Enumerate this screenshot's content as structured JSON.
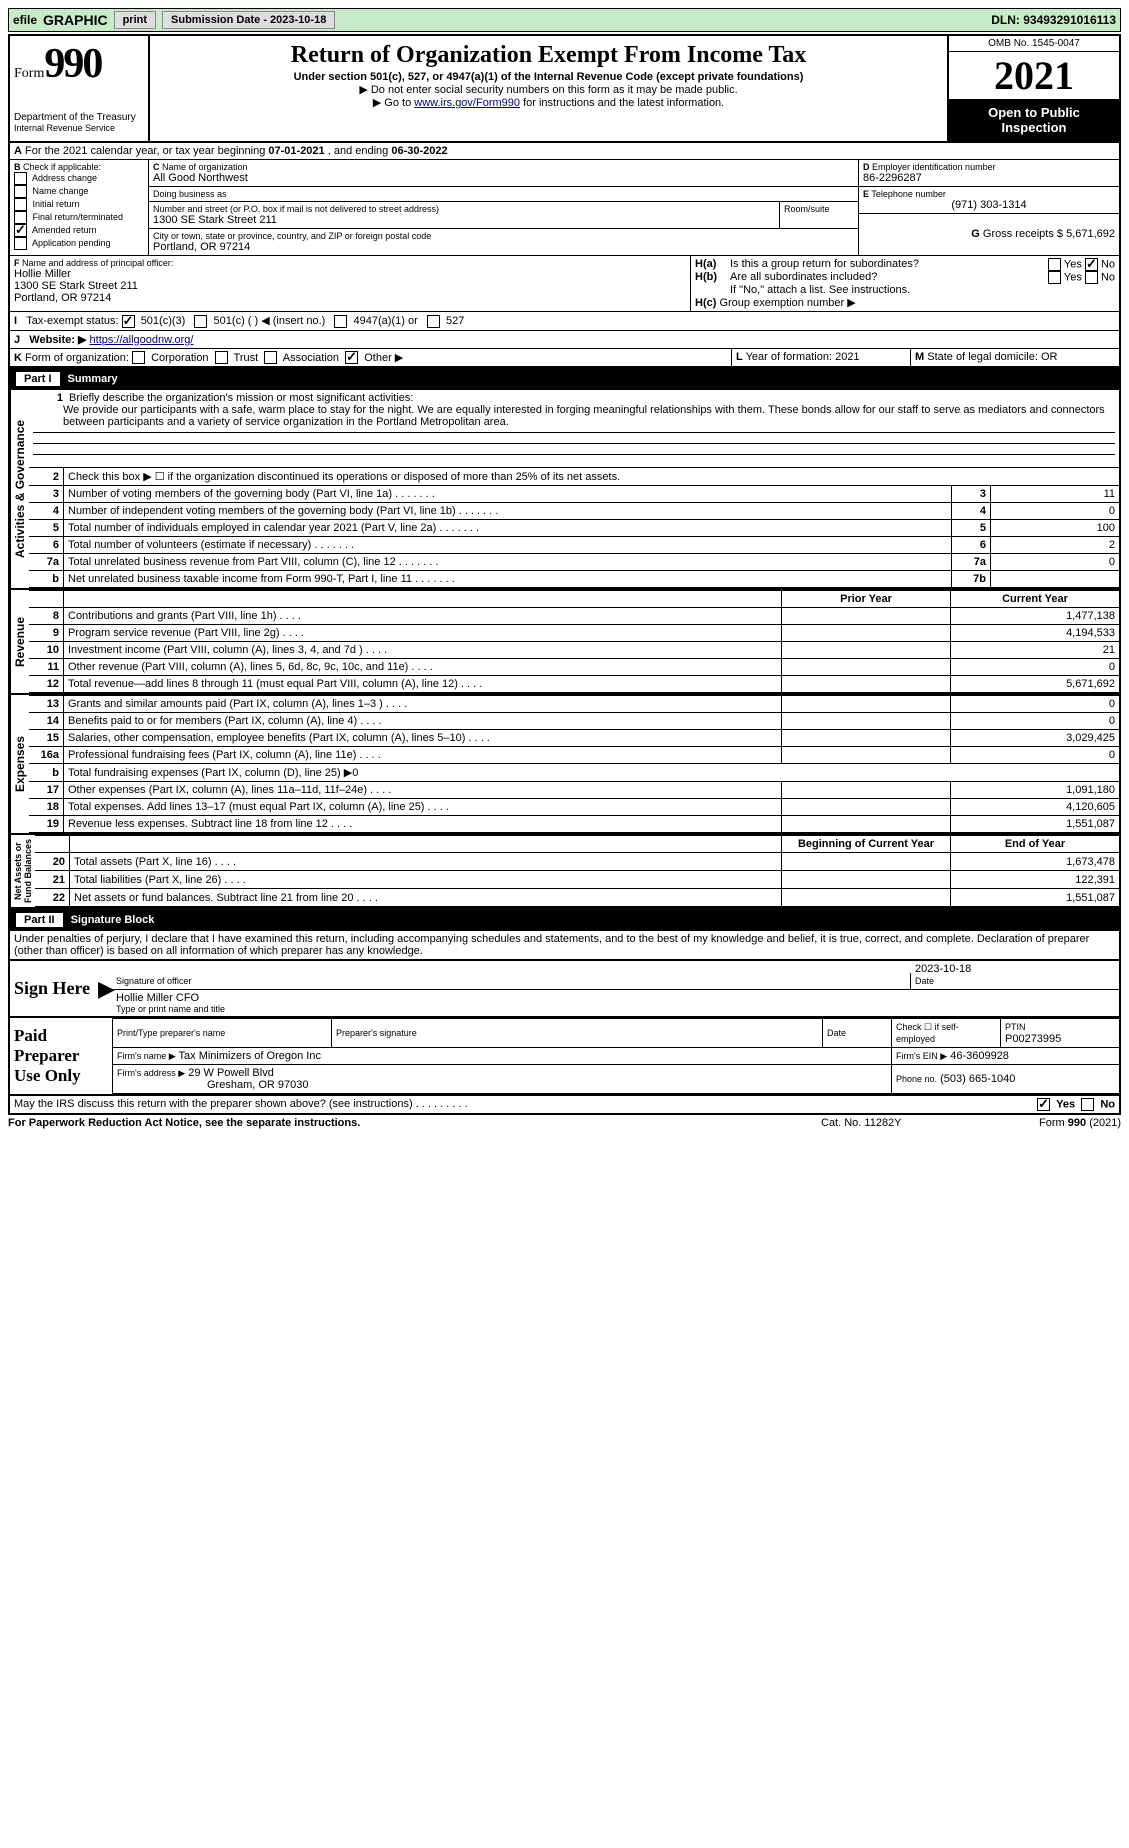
{
  "topbar": {
    "efile": "efile",
    "graphic": "GRAPHIC",
    "print": "print",
    "sub": "Submission Date - 2023-10-18",
    "dln": "DLN: 93493291016113"
  },
  "header": {
    "form": "Form",
    "num": "990",
    "title": "Return of Organization Exempt From Income Tax",
    "sub": "Under section 501(c), 527, or 4947(a)(1) of the Internal Revenue Code (except private foundations)",
    "note1": "▶ Do not enter social security numbers on this form as it may be made public.",
    "note2": "▶ Go to ",
    "link": "www.irs.gov/Form990",
    "note3": " for instructions and the latest information.",
    "dept": "Department of the Treasury",
    "irs": "Internal Revenue Service",
    "omb": "OMB No. 1545-0047",
    "year": "2021",
    "otp": "Open to Public Inspection"
  },
  "A": {
    "text": "For the 2021 calendar year, or tax year beginning ",
    "begin": "07-01-2021",
    "mid": " , and ending ",
    "end": "06-30-2022"
  },
  "B": {
    "hdr": "Check if applicable:",
    "items": [
      "Address change",
      "Name change",
      "Initial return",
      "Final return/terminated",
      "Amended return",
      "Application pending"
    ],
    "checked": [
      false,
      false,
      false,
      false,
      true,
      false
    ]
  },
  "C": {
    "name_lbl": "Name of organization",
    "name": "All Good Northwest",
    "dba_lbl": "Doing business as",
    "dba": "",
    "street_lbl": "Number and street (or P.O. box if mail is not delivered to street address)",
    "room_lbl": "Room/suite",
    "street": "1300 SE Stark Street 211",
    "city_lbl": "City or town, state or province, country, and ZIP or foreign postal code",
    "city": "Portland, OR  97214"
  },
  "D": {
    "lbl": "Employer identification number",
    "val": "86-2296287"
  },
  "E": {
    "lbl": "Telephone number",
    "val": "(971) 303-1314"
  },
  "G": {
    "lbl": "Gross receipts $",
    "val": "5,671,692"
  },
  "F": {
    "lbl": "Name and address of principal officer:",
    "name": "Hollie Miller",
    "addr1": "1300 SE Stark Street 211",
    "addr2": "Portland, OR  97214"
  },
  "H": {
    "a": "Is this a group return for subordinates?",
    "a_yes": "Yes",
    "a_no": "No",
    "b": "Are all subordinates included?",
    "b_note": "If \"No,\" attach a list. See instructions.",
    "c": "Group exemption number ▶"
  },
  "I": {
    "lbl": "Tax-exempt status:",
    "opts": [
      "501(c)(3)",
      "501(c) (  ) ◀ (insert no.)",
      "4947(a)(1) or",
      "527"
    ]
  },
  "J": {
    "lbl": "Website: ▶",
    "val": "https://allgoodnw.org/"
  },
  "K": {
    "lbl": "Form of organization:",
    "opts": [
      "Corporation",
      "Trust",
      "Association",
      "Other ▶"
    ]
  },
  "L": {
    "lbl": "Year of formation:",
    "val": "2021"
  },
  "M": {
    "lbl": "State of legal domicile:",
    "val": "OR"
  },
  "partI": {
    "lbl": "Part I",
    "title": "Summary"
  },
  "mission": {
    "q": "Briefly describe the organization's mission or most significant activities:",
    "text": "We provide our participants with a safe, warm place to stay for the night. We are equally interested in forging meaningful relationships with them. These bonds allow for our staff to serve as mediators and connectors between participants and a variety of service organization in the Portland Metropolitan area."
  },
  "gov_lines": [
    {
      "n": "2",
      "t": "Check this box ▶ ☐ if the organization discontinued its operations or disposed of more than 25% of its net assets."
    },
    {
      "n": "3",
      "t": "Number of voting members of the governing body (Part VI, line 1a)",
      "box": "3",
      "v": "11"
    },
    {
      "n": "4",
      "t": "Number of independent voting members of the governing body (Part VI, line 1b)",
      "box": "4",
      "v": "0"
    },
    {
      "n": "5",
      "t": "Total number of individuals employed in calendar year 2021 (Part V, line 2a)",
      "box": "5",
      "v": "100"
    },
    {
      "n": "6",
      "t": "Total number of volunteers (estimate if necessary)",
      "box": "6",
      "v": "2"
    },
    {
      "n": "7a",
      "t": "Total unrelated business revenue from Part VIII, column (C), line 12",
      "box": "7a",
      "v": "0"
    },
    {
      "n": "b",
      "t": "Net unrelated business taxable income from Form 990-T, Part I, line 11",
      "box": "7b",
      "v": ""
    }
  ],
  "col_hdr": {
    "prior": "Prior Year",
    "current": "Current Year"
  },
  "revenue": [
    {
      "n": "8",
      "t": "Contributions and grants (Part VIII, line 1h)",
      "p": "",
      "c": "1,477,138"
    },
    {
      "n": "9",
      "t": "Program service revenue (Part VIII, line 2g)",
      "p": "",
      "c": "4,194,533"
    },
    {
      "n": "10",
      "t": "Investment income (Part VIII, column (A), lines 3, 4, and 7d )",
      "p": "",
      "c": "21"
    },
    {
      "n": "11",
      "t": "Other revenue (Part VIII, column (A), lines 5, 6d, 8c, 9c, 10c, and 11e)",
      "p": "",
      "c": "0"
    },
    {
      "n": "12",
      "t": "Total revenue—add lines 8 through 11 (must equal Part VIII, column (A), line 12)",
      "p": "",
      "c": "5,671,692"
    }
  ],
  "expenses": [
    {
      "n": "13",
      "t": "Grants and similar amounts paid (Part IX, column (A), lines 1–3 )",
      "p": "",
      "c": "0"
    },
    {
      "n": "14",
      "t": "Benefits paid to or for members (Part IX, column (A), line 4)",
      "p": "",
      "c": "0"
    },
    {
      "n": "15",
      "t": "Salaries, other compensation, employee benefits (Part IX, column (A), lines 5–10)",
      "p": "",
      "c": "3,029,425"
    },
    {
      "n": "16a",
      "t": "Professional fundraising fees (Part IX, column (A), line 11e)",
      "p": "",
      "c": "0"
    },
    {
      "n": "b",
      "t": "Total fundraising expenses (Part IX, column (D), line 25) ▶0",
      "p": "—",
      "c": "—"
    },
    {
      "n": "17",
      "t": "Other expenses (Part IX, column (A), lines 11a–11d, 11f–24e)",
      "p": "",
      "c": "1,091,180"
    },
    {
      "n": "18",
      "t": "Total expenses. Add lines 13–17 (must equal Part IX, column (A), line 25)",
      "p": "",
      "c": "4,120,605"
    },
    {
      "n": "19",
      "t": "Revenue less expenses. Subtract line 18 from line 12",
      "p": "",
      "c": "1,551,087"
    }
  ],
  "net_hdr": {
    "begin": "Beginning of Current Year",
    "end": "End of Year"
  },
  "net": [
    {
      "n": "20",
      "t": "Total assets (Part X, line 16)",
      "p": "",
      "c": "1,673,478"
    },
    {
      "n": "21",
      "t": "Total liabilities (Part X, line 26)",
      "p": "",
      "c": "122,391"
    },
    {
      "n": "22",
      "t": "Net assets or fund balances. Subtract line 21 from line 20",
      "p": "",
      "c": "1,551,087"
    }
  ],
  "partII": {
    "lbl": "Part II",
    "title": "Signature Block",
    "decl": "Under penalties of perjury, I declare that I have examined this return, including accompanying schedules and statements, and to the best of my knowledge and belief, it is true, correct, and complete. Declaration of preparer (other than officer) is based on all information of which preparer has any knowledge."
  },
  "sign": {
    "here": "Sign Here",
    "sig": "Signature of officer",
    "date": "Date",
    "dateval": "2023-10-18",
    "name": "Hollie Miller CFO",
    "typ": "Type or print name and title"
  },
  "paid": {
    "title": "Paid Preparer Use Only",
    "h1": "Print/Type preparer's name",
    "h2": "Preparer's signature",
    "h3": "Date",
    "h4": "Check ☐ if self-employed",
    "h5": "PTIN",
    "ptin": "P00273995",
    "firm": "Firm's name ▶",
    "firmval": "Tax Minimizers of Oregon Inc",
    "ein": "Firm's EIN ▶",
    "einval": "46-3609928",
    "addr": "Firm's address ▶",
    "addrval": "29 W Powell Blvd",
    "addr2": "Gresham, OR  97030",
    "ph": "Phone no.",
    "phval": "(503) 665-1040"
  },
  "discuss": {
    "q": "May the IRS discuss this return with the preparer shown above? (see instructions)",
    "yes": "Yes",
    "no": "No"
  },
  "footer": {
    "l": "For Paperwork Reduction Act Notice, see the separate instructions.",
    "m": "Cat. No. 11282Y",
    "r": "Form 990 (2021)"
  }
}
